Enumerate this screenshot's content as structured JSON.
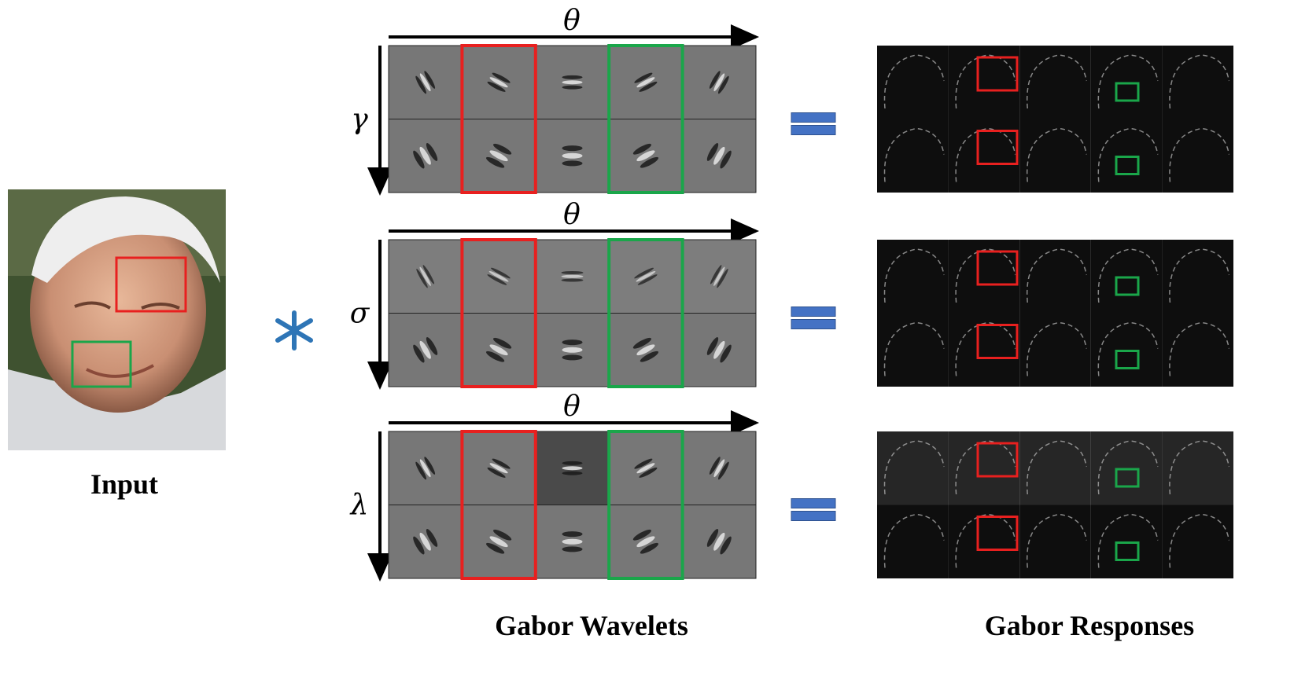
{
  "input": {
    "label": "Input"
  },
  "wavelets": {
    "title": "Gabor Wavelets",
    "groups": [
      {
        "axis": "θ",
        "param": "γ"
      },
      {
        "axis": "θ",
        "param": "σ"
      },
      {
        "axis": "θ",
        "param": "λ"
      }
    ]
  },
  "responses": {
    "title": "Gabor Responses"
  }
}
